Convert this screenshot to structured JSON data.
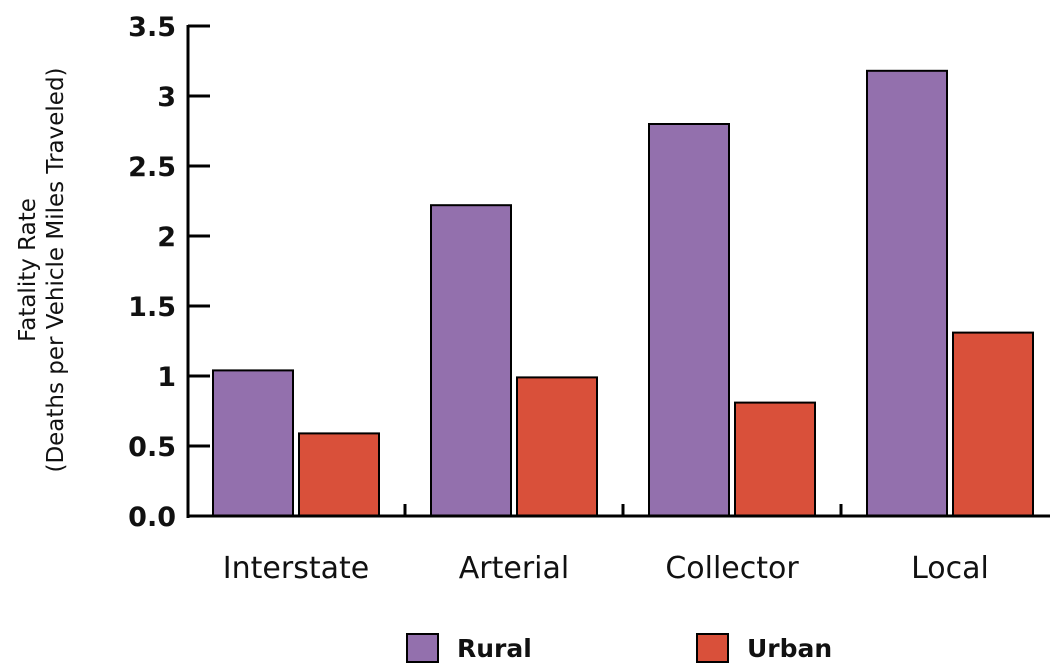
{
  "chart_data": {
    "type": "bar",
    "categories": [
      "Interstate",
      "Arterial",
      "Collector",
      "Local"
    ],
    "series": [
      {
        "name": "Rural",
        "values": [
          1.04,
          2.22,
          2.8,
          3.18
        ],
        "color": "#9370ad"
      },
      {
        "name": "Urban",
        "values": [
          0.59,
          0.99,
          0.81,
          1.31
        ],
        "color": "#d9503a"
      }
    ],
    "ylabel_line1": "Fatality Rate",
    "ylabel_line2": "(Deaths per Vehicle Miles Traveled)",
    "ylim": [
      0,
      3.5
    ],
    "yticks": [
      {
        "value": 0,
        "label": "0.0"
      },
      {
        "value": 0.5,
        "label": "0.5"
      },
      {
        "value": 1,
        "label": "1"
      },
      {
        "value": 1.5,
        "label": "1.5"
      },
      {
        "value": 2,
        "label": "2"
      },
      {
        "value": 2.5,
        "label": "2.5"
      },
      {
        "value": 3,
        "label": "3"
      },
      {
        "value": 3.5,
        "label": "3.5"
      }
    ],
    "grid": false,
    "legend_position": "bottom"
  }
}
